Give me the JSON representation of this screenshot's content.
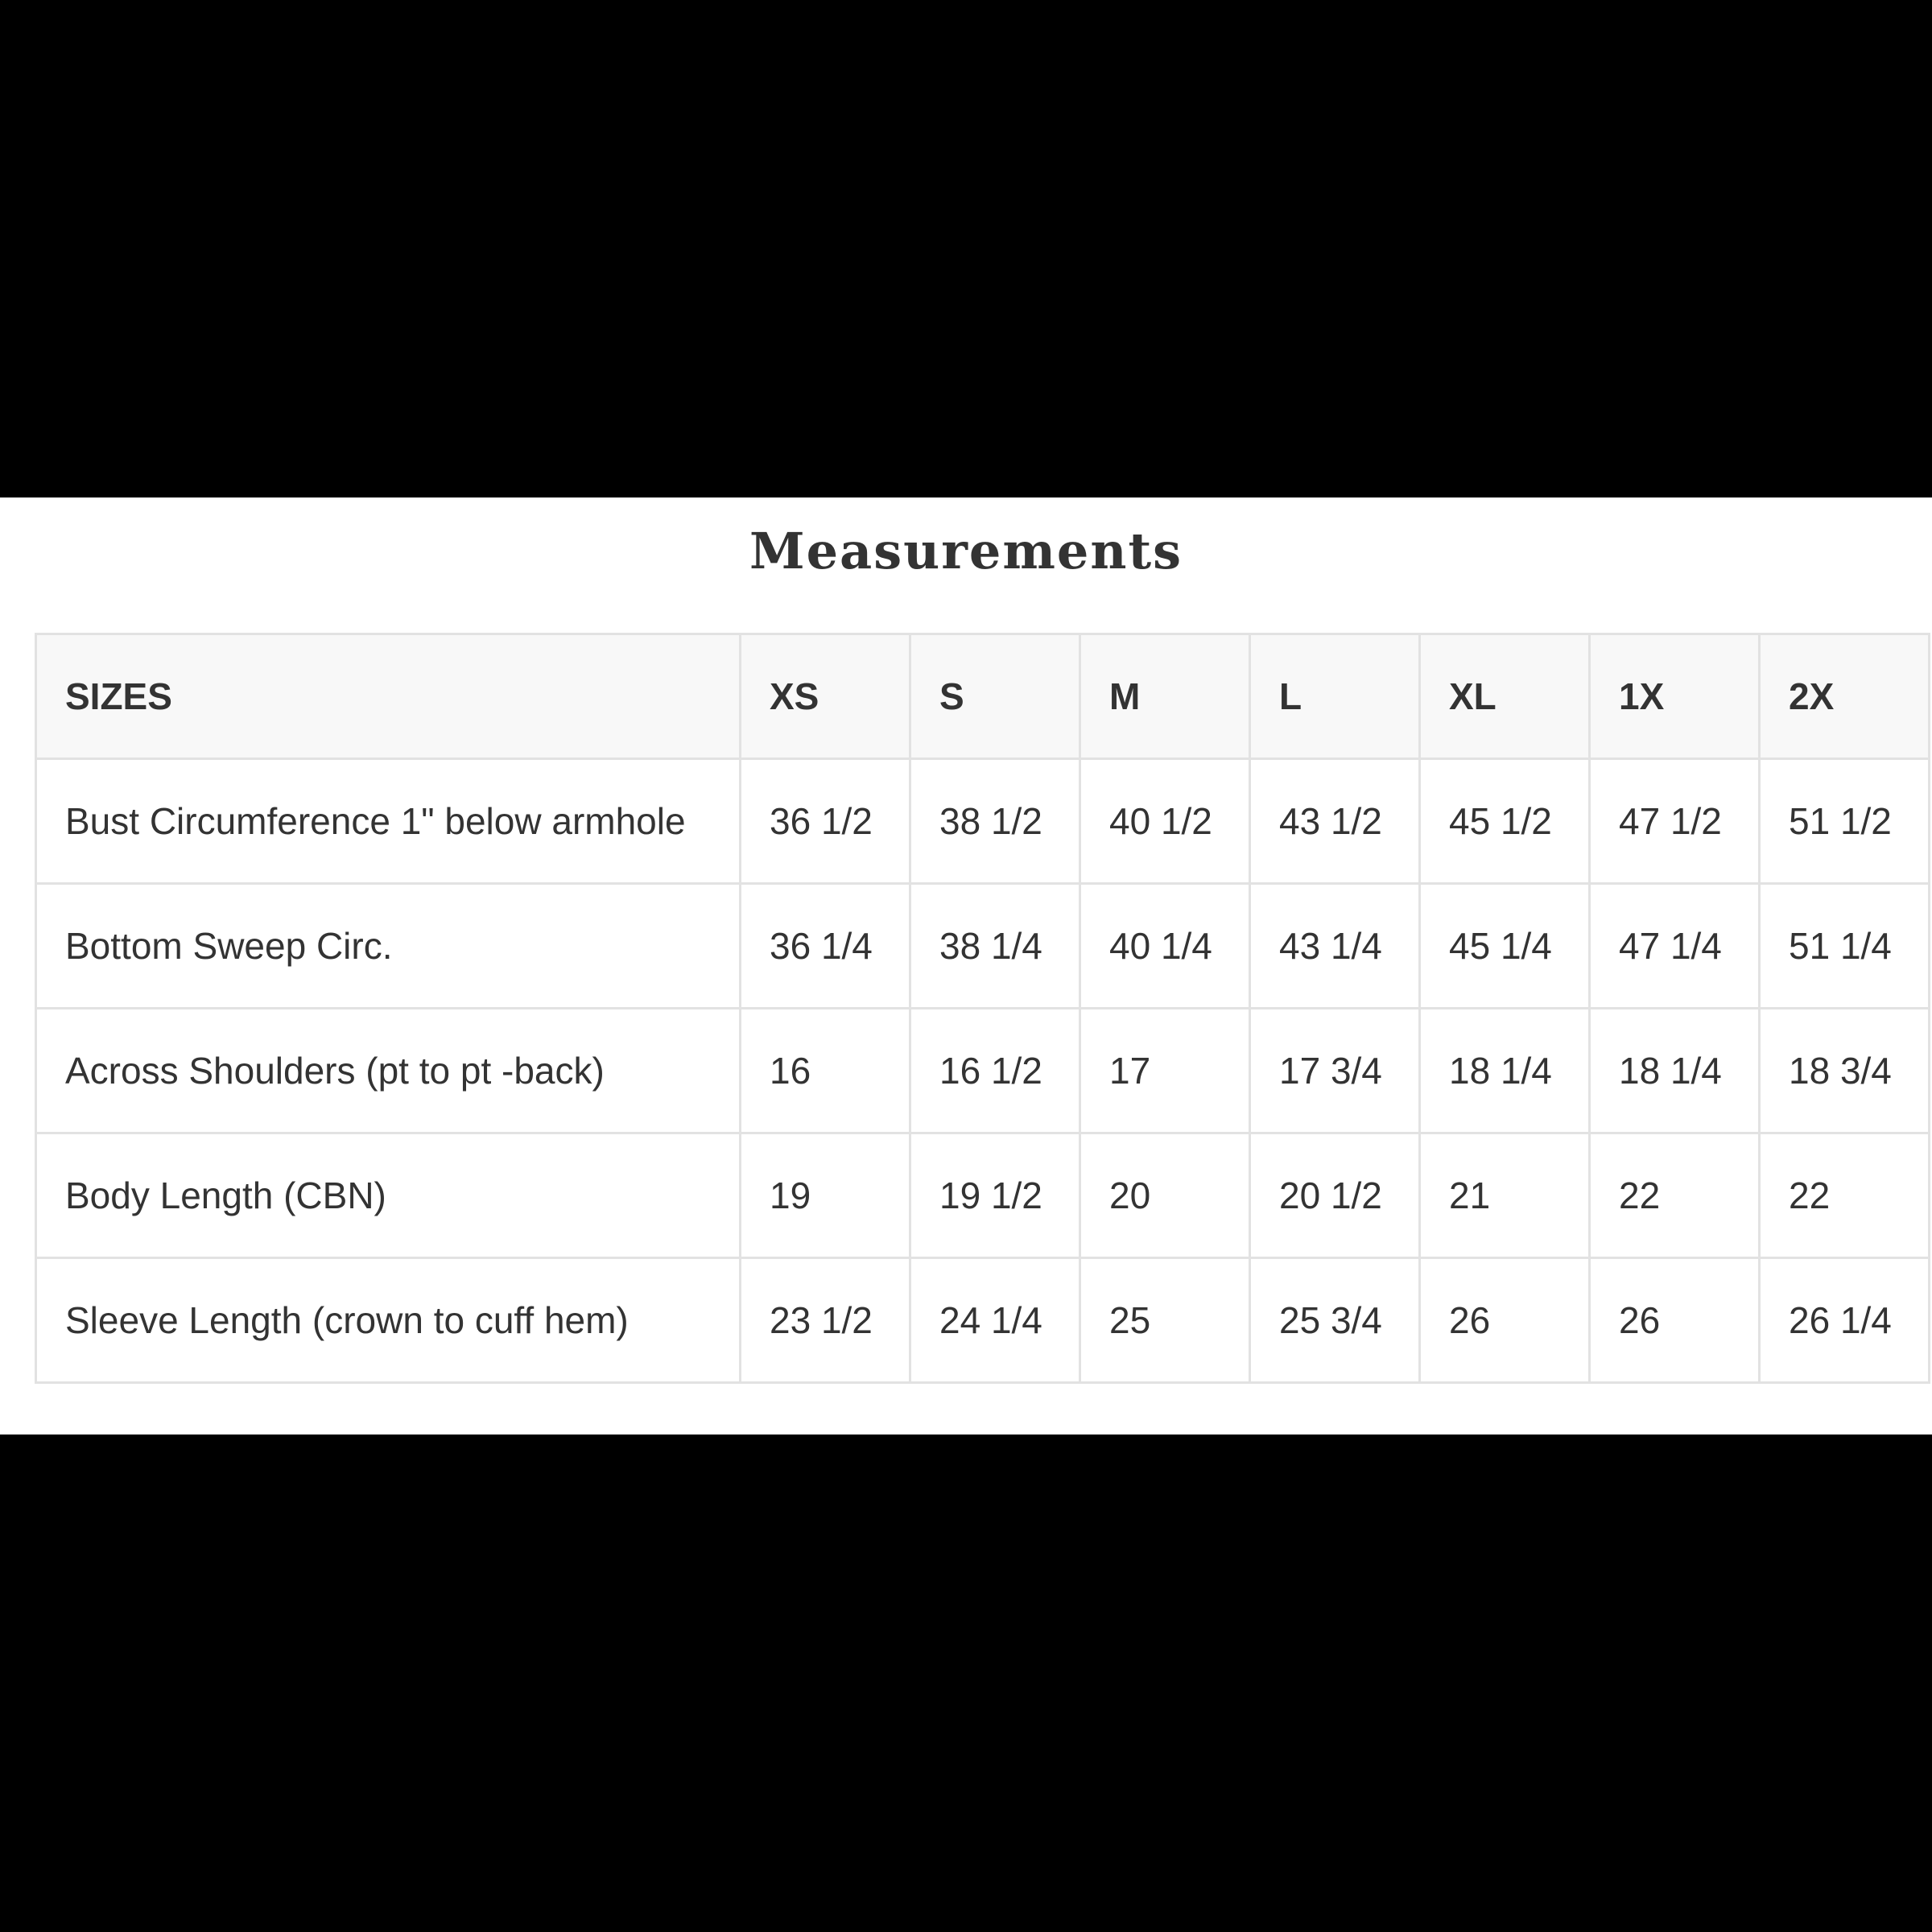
{
  "title": "Measurements",
  "table": {
    "headers": [
      "SIZES",
      "XS",
      "S",
      "M",
      "L",
      "XL",
      "1X",
      "2X"
    ],
    "rows": [
      [
        "Bust Circumference 1\" below armhole",
        "36 1/2",
        "38 1/2",
        "40 1/2",
        "43 1/2",
        "45 1/2",
        "47 1/2",
        "51 1/2"
      ],
      [
        "Bottom Sweep Circ.",
        "36 1/4",
        "38 1/4",
        "40 1/4",
        "43 1/4",
        "45 1/4",
        "47 1/4",
        "51 1/4"
      ],
      [
        "Across Shoulders (pt to pt -back)",
        "16",
        "16 1/2",
        "17",
        "17 3/4",
        "18 1/4",
        "18 1/4",
        "18 3/4"
      ],
      [
        "Body Length (CBN)",
        "19",
        "19 1/2",
        "20",
        "20 1/2",
        "21",
        "22",
        "22"
      ],
      [
        "Sleeve Length (crown to cuff hem)",
        "23 1/2",
        "24 1/4",
        "25",
        "25 3/4",
        "26",
        "26",
        "26 1/4"
      ]
    ]
  }
}
